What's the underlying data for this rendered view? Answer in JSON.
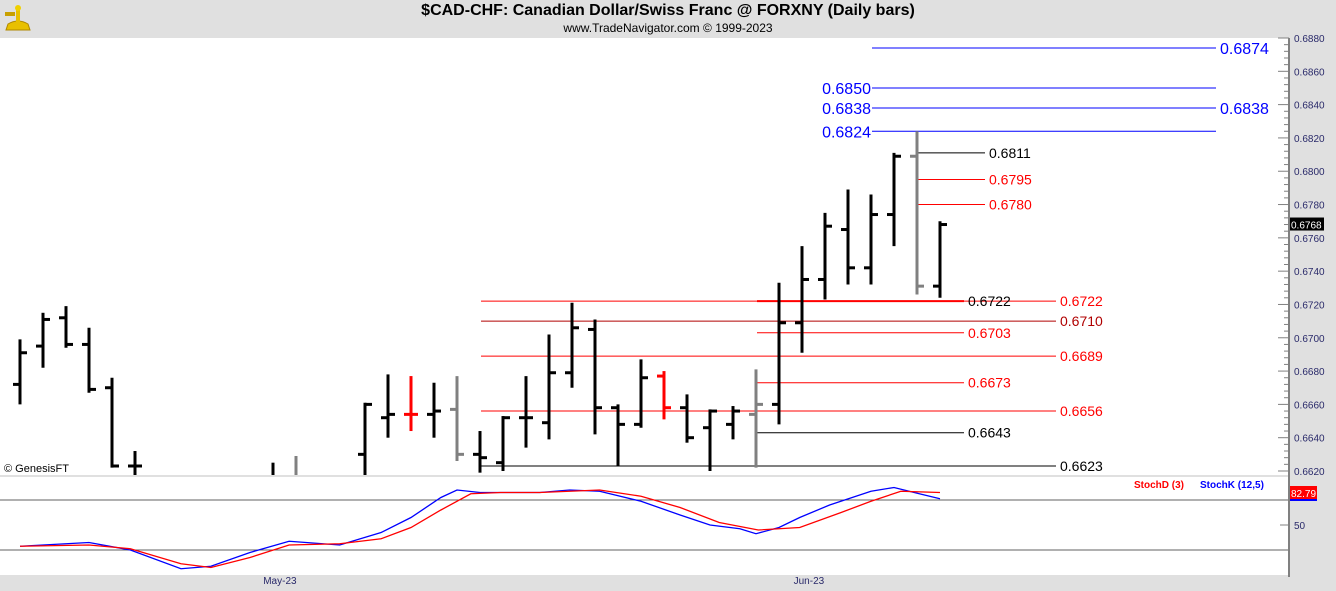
{
  "header": {
    "title": "$CAD-CHF:  Canadian Dollar/Swiss Franc @ FORXNY  (Daily bars)",
    "subtitle": "www.TradeNavigator.com © 1999-2023",
    "copyright": "© GenesisFT",
    "logo": "sextant-logo"
  },
  "chart_data": [
    {
      "type": "ohlc",
      "title": "$CAD-CHF:  Canadian Dollar/Swiss Franc @ FORXNY  (Daily bars)",
      "ylim": [
        0.662,
        0.688
      ],
      "yticks": [
        "0.6880",
        "0.6860",
        "0.6840",
        "0.6820",
        "0.6800",
        "0.6780",
        "0.6760",
        "0.6740",
        "0.6720",
        "0.6700",
        "0.6680",
        "0.6660",
        "0.6640",
        "0.6620"
      ],
      "last_price_label": "0.6768",
      "xticks": [
        {
          "index": 11.3,
          "label": "May-23"
        },
        {
          "index": 34.3,
          "label": "Jun-23"
        }
      ],
      "colors": {
        "up": "#000000",
        "red": "#ff0000",
        "gray": "#808080",
        "blue": "#0000ff",
        "darkred": "#b00000"
      },
      "bars": [
        {
          "i": 0,
          "o": 0.6672,
          "h": 0.6699,
          "l": 0.666,
          "c": 0.6691,
          "col": "black"
        },
        {
          "i": 1,
          "o": 0.6695,
          "h": 0.6715,
          "l": 0.6682,
          "c": 0.6711,
          "col": "black"
        },
        {
          "i": 2,
          "o": 0.6712,
          "h": 0.6719,
          "l": 0.6694,
          "c": 0.6696,
          "col": "black"
        },
        {
          "i": 3,
          "o": 0.6696,
          "h": 0.6706,
          "l": 0.6667,
          "c": 0.6669,
          "col": "black"
        },
        {
          "i": 4,
          "o": 0.667,
          "h": 0.6676,
          "l": 0.6622,
          "c": 0.6623,
          "col": "black"
        },
        {
          "i": 5,
          "o": 0.6623,
          "h": 0.6632,
          "l": 0.6605,
          "c": 0.6623,
          "col": "black"
        },
        {
          "i": 11,
          "o": 0.6615,
          "h": 0.6625,
          "l": 0.6605,
          "c": 0.6612,
          "col": "black"
        },
        {
          "i": 12,
          "o": 0.6612,
          "h": 0.6629,
          "l": 0.6605,
          "c": 0.6615,
          "col": "gray"
        },
        {
          "i": 15,
          "o": 0.663,
          "h": 0.6661,
          "l": 0.661,
          "c": 0.666,
          "col": "black"
        },
        {
          "i": 16,
          "o": 0.6652,
          "h": 0.6678,
          "l": 0.664,
          "c": 0.6654,
          "col": "black"
        },
        {
          "i": 17,
          "o": 0.6654,
          "h": 0.6677,
          "l": 0.6644,
          "c": 0.6654,
          "col": "red"
        },
        {
          "i": 18,
          "o": 0.6654,
          "h": 0.6673,
          "l": 0.664,
          "c": 0.6656,
          "col": "black"
        },
        {
          "i": 19,
          "o": 0.6657,
          "h": 0.6677,
          "l": 0.6626,
          "c": 0.663,
          "col": "gray"
        },
        {
          "i": 20,
          "o": 0.663,
          "h": 0.6644,
          "l": 0.6619,
          "c": 0.6628,
          "col": "black"
        },
        {
          "i": 21,
          "o": 0.6625,
          "h": 0.6653,
          "l": 0.662,
          "c": 0.6652,
          "col": "black"
        },
        {
          "i": 22,
          "o": 0.6652,
          "h": 0.6677,
          "l": 0.6634,
          "c": 0.6652,
          "col": "black"
        },
        {
          "i": 23,
          "o": 0.6649,
          "h": 0.6702,
          "l": 0.6639,
          "c": 0.6679,
          "col": "black"
        },
        {
          "i": 24,
          "o": 0.6679,
          "h": 0.6721,
          "l": 0.667,
          "c": 0.6706,
          "col": "black"
        },
        {
          "i": 25,
          "o": 0.6705,
          "h": 0.6711,
          "l": 0.6642,
          "c": 0.6658,
          "col": "black"
        },
        {
          "i": 26,
          "o": 0.6658,
          "h": 0.666,
          "l": 0.6623,
          "c": 0.6648,
          "col": "black"
        },
        {
          "i": 27,
          "o": 0.6648,
          "h": 0.6687,
          "l": 0.6646,
          "c": 0.6676,
          "col": "black"
        },
        {
          "i": 28,
          "o": 0.6677,
          "h": 0.668,
          "l": 0.6651,
          "c": 0.6658,
          "col": "red"
        },
        {
          "i": 29,
          "o": 0.6658,
          "h": 0.6666,
          "l": 0.6637,
          "c": 0.664,
          "col": "black"
        },
        {
          "i": 30,
          "o": 0.6646,
          "h": 0.6657,
          "l": 0.662,
          "c": 0.6656,
          "col": "black"
        },
        {
          "i": 31,
          "o": 0.6648,
          "h": 0.6659,
          "l": 0.6639,
          "c": 0.6656,
          "col": "black"
        },
        {
          "i": 32,
          "o": 0.6654,
          "h": 0.6681,
          "l": 0.6622,
          "c": 0.666,
          "col": "gray"
        },
        {
          "i": 33,
          "o": 0.666,
          "h": 0.6733,
          "l": 0.6648,
          "c": 0.6709,
          "col": "black"
        },
        {
          "i": 34,
          "o": 0.6709,
          "h": 0.6755,
          "l": 0.6691,
          "c": 0.6735,
          "col": "black"
        },
        {
          "i": 35,
          "o": 0.6735,
          "h": 0.6775,
          "l": 0.6723,
          "c": 0.6767,
          "col": "black"
        },
        {
          "i": 36,
          "o": 0.6765,
          "h": 0.6789,
          "l": 0.6732,
          "c": 0.6742,
          "col": "black"
        },
        {
          "i": 37,
          "o": 0.6742,
          "h": 0.6786,
          "l": 0.6732,
          "c": 0.6774,
          "col": "black"
        },
        {
          "i": 38,
          "o": 0.6774,
          "h": 0.6811,
          "l": 0.6755,
          "c": 0.6809,
          "col": "black"
        },
        {
          "i": 39,
          "o": 0.6809,
          "h": 0.6824,
          "l": 0.6726,
          "c": 0.6731,
          "col": "gray"
        },
        {
          "i": 40,
          "o": 0.6731,
          "h": 0.677,
          "l": 0.6724,
          "c": 0.6768,
          "col": "black"
        }
      ],
      "levels": [
        {
          "price": 0.6874,
          "label": "0.6874",
          "color": "#0000ff",
          "group": "top",
          "label_side": "right"
        },
        {
          "price": 0.685,
          "label": "0.6850",
          "color": "#0000ff",
          "group": "top",
          "label_side": "left"
        },
        {
          "price": 0.6838,
          "label": "0.6838",
          "color": "#0000ff",
          "group": "top",
          "label_side": "both"
        },
        {
          "price": 0.6824,
          "label": "0.6824",
          "color": "#0000ff",
          "group": "top",
          "label_side": "left"
        },
        {
          "price": 0.6811,
          "label": "0.6811",
          "color": "#000000",
          "group": "upper",
          "label_side": "right"
        },
        {
          "price": 0.6795,
          "label": "0.6795",
          "color": "#ff0000",
          "group": "upper",
          "label_side": "right"
        },
        {
          "price": 0.678,
          "label": "0.6780",
          "color": "#ff0000",
          "group": "upper",
          "label_side": "right"
        },
        {
          "price": 0.6722,
          "label": "0.6722",
          "color": "#ff0000",
          "group": "wide",
          "label_side": "right"
        },
        {
          "price": 0.671,
          "label": "0.6710",
          "color": "#b00000",
          "group": "wide",
          "label_side": "right"
        },
        {
          "price": 0.6689,
          "label": "0.6689",
          "color": "#ff0000",
          "group": "wide",
          "label_side": "right"
        },
        {
          "price": 0.6656,
          "label": "0.6656",
          "color": "#ff0000",
          "group": "wide",
          "label_side": "right"
        },
        {
          "price": 0.6623,
          "label": "0.6623",
          "color": "#000000",
          "group": "wide",
          "label_side": "right"
        },
        {
          "price": 0.6722,
          "label": "0.6722",
          "color": "#ff0000",
          "group": "mid",
          "label_side": "right",
          "label_color": "#000000",
          "thick": true
        },
        {
          "price": 0.6703,
          "label": "0.6703",
          "color": "#ff0000",
          "group": "mid",
          "label_side": "right"
        },
        {
          "price": 0.6673,
          "label": "0.6673",
          "color": "#ff0000",
          "group": "mid",
          "label_side": "right"
        },
        {
          "price": 0.6643,
          "label": "0.6643",
          "color": "#000000",
          "group": "mid",
          "label_side": "right"
        }
      ]
    },
    {
      "type": "line",
      "title": "Stochastic",
      "ylim": [
        10,
        90
      ],
      "guide_lines": [
        70,
        30
      ],
      "yticks": [
        "50"
      ],
      "legend": [
        {
          "name": "StochD (3)",
          "color": "#ff0000"
        },
        {
          "name": "StochK (12,5)",
          "color": "#0000ff"
        }
      ],
      "last_value_label": "82.79",
      "series": [
        {
          "name": "StochK (12,5)",
          "color": "#0000ff",
          "x": [
            0,
            3,
            4.8,
            7,
            8.3,
            10,
            11.7,
            13.9,
            15.7,
            17,
            18.3,
            19,
            20,
            20.9,
            22.6,
            23.9,
            25.2,
            27,
            28.7,
            30,
            31.3,
            32,
            33,
            33.9,
            35.2,
            37,
            38,
            39.1,
            40
          ],
          "y": [
            33,
            36,
            30,
            15,
            17,
            28,
            37,
            34,
            44,
            56,
            72,
            78,
            76,
            76,
            76,
            78,
            77,
            69,
            58,
            50,
            47,
            43,
            48,
            56,
            66,
            77,
            80,
            75,
            71
          ]
        },
        {
          "name": "StochD (3)",
          "color": "#ff0000",
          "x": [
            0,
            3,
            4.8,
            7,
            8.3,
            10,
            11.7,
            13.9,
            15.7,
            17,
            18.3,
            19.6,
            20.9,
            22.6,
            23.9,
            25.2,
            27,
            28.7,
            30.4,
            32.1,
            33.9,
            35.7,
            37,
            38.3,
            40
          ],
          "y": [
            33,
            34,
            31,
            19,
            16,
            24,
            34,
            35,
            39,
            48,
            62,
            75,
            76,
            76,
            77,
            78,
            73,
            64,
            52,
            46,
            48,
            60,
            69,
            77,
            76
          ]
        }
      ]
    }
  ]
}
